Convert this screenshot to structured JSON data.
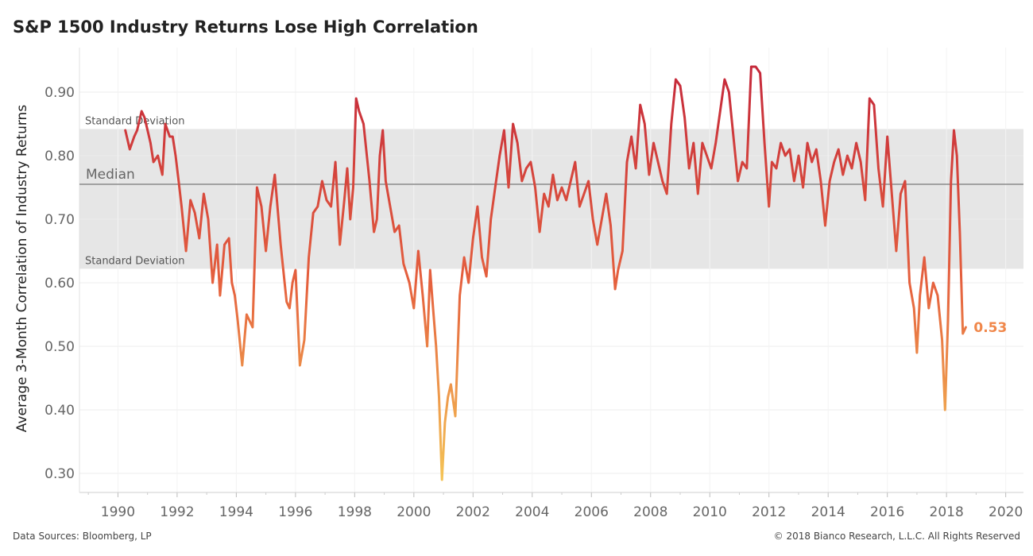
{
  "chart_data": {
    "type": "line",
    "title": "S&P 1500 Industry Returns Lose High Correlation",
    "ylabel": "Average 3-Month Correlation of Industry Returns",
    "xlabel": "",
    "xlim": [
      1988.7,
      2020.6
    ],
    "ylim": [
      0.27,
      0.97
    ],
    "x_ticks": [
      1990,
      1992,
      1994,
      1996,
      1998,
      2000,
      2002,
      2004,
      2006,
      2008,
      2010,
      2012,
      2014,
      2016,
      2018,
      2020
    ],
    "y_ticks": [
      0.3,
      0.4,
      0.5,
      0.6,
      0.7,
      0.8,
      0.9
    ],
    "y_tick_labels": [
      "0.30",
      "0.40",
      "0.50",
      "0.60",
      "0.70",
      "0.80",
      "0.90"
    ],
    "grid": true,
    "reference_lines": {
      "median": {
        "label": "Median",
        "value": 0.755
      },
      "upper_std": {
        "label": "Standard Deviation",
        "value": 0.842
      },
      "lower_std": {
        "label": "Standard Deviation",
        "value": 0.622
      }
    },
    "colors": {
      "high": "#c2233a",
      "mid": "#e5613e",
      "low": "#f4c255",
      "band": "#e6e6e6",
      "median_line": "#8a8a8a"
    },
    "last_value_label": "0.53",
    "series": [
      {
        "x": [
          1990.25,
          1990.4,
          1990.55,
          1990.65,
          1990.8,
          1990.9,
          1991.0,
          1991.1,
          1991.2,
          1991.35,
          1991.5,
          1991.6,
          1991.75,
          1991.85,
          1991.95,
          1992.05,
          1992.15,
          1992.3,
          1992.45,
          1992.6,
          1992.75,
          1992.9,
          1993.05,
          1993.2,
          1993.35,
          1993.45,
          1993.6,
          1993.75,
          1993.85,
          1993.95,
          1994.05,
          1994.2,
          1994.35,
          1994.55,
          1994.7,
          1994.85,
          1995.0,
          1995.15,
          1995.3,
          1995.5,
          1995.7,
          1995.8,
          1995.9,
          1996.0,
          1996.15,
          1996.3,
          1996.45,
          1996.6,
          1996.75,
          1996.9,
          1997.05,
          1997.2,
          1997.35,
          1997.5,
          1997.65,
          1997.75,
          1997.85,
          1997.95,
          1998.05,
          1998.15,
          1998.3,
          1998.5,
          1998.65,
          1998.75,
          1998.85,
          1998.95,
          1999.05,
          1999.2,
          1999.35,
          1999.5,
          1999.65,
          1999.85,
          2000.0,
          2000.15,
          2000.3,
          2000.45,
          2000.55,
          2000.65,
          2000.75,
          2000.85,
          2000.95,
          2001.05,
          2001.15,
          2001.25,
          2001.4,
          2001.55,
          2001.7,
          2001.85,
          2002.0,
          2002.15,
          2002.3,
          2002.45,
          2002.6,
          2002.75,
          2002.9,
          2003.05,
          2003.2,
          2003.35,
          2003.5,
          2003.65,
          2003.8,
          2003.95,
          2004.1,
          2004.25,
          2004.4,
          2004.55,
          2004.7,
          2004.85,
          2005.0,
          2005.15,
          2005.3,
          2005.45,
          2005.6,
          2005.75,
          2005.9,
          2006.05,
          2006.2,
          2006.35,
          2006.5,
          2006.65,
          2006.8,
          2006.9,
          2007.05,
          2007.2,
          2007.35,
          2007.5,
          2007.65,
          2007.8,
          2007.95,
          2008.1,
          2008.25,
          2008.4,
          2008.55,
          2008.7,
          2008.85,
          2009.0,
          2009.15,
          2009.3,
          2009.45,
          2009.6,
          2009.75,
          2009.9,
          2010.05,
          2010.2,
          2010.35,
          2010.5,
          2010.65,
          2010.8,
          2010.95,
          2011.1,
          2011.25,
          2011.4,
          2011.55,
          2011.7,
          2011.85,
          2012.0,
          2012.1,
          2012.25,
          2012.4,
          2012.55,
          2012.7,
          2012.85,
          2013.0,
          2013.15,
          2013.3,
          2013.45,
          2013.6,
          2013.75,
          2013.9,
          2014.05,
          2014.2,
          2014.35,
          2014.5,
          2014.65,
          2014.8,
          2014.95,
          2015.1,
          2015.25,
          2015.4,
          2015.55,
          2015.7,
          2015.85,
          2016.0,
          2016.15,
          2016.3,
          2016.45,
          2016.6,
          2016.75,
          2016.9,
          2017.0,
          2017.1,
          2017.25,
          2017.4,
          2017.55,
          2017.7,
          2017.85,
          2017.95,
          2018.05,
          2018.15,
          2018.25,
          2018.35,
          2018.45,
          2018.55,
          2018.65
        ],
        "y": [
          0.84,
          0.81,
          0.83,
          0.84,
          0.87,
          0.86,
          0.84,
          0.82,
          0.79,
          0.8,
          0.77,
          0.85,
          0.83,
          0.83,
          0.8,
          0.76,
          0.72,
          0.65,
          0.73,
          0.71,
          0.67,
          0.74,
          0.7,
          0.6,
          0.66,
          0.58,
          0.66,
          0.67,
          0.6,
          0.58,
          0.54,
          0.47,
          0.55,
          0.53,
          0.75,
          0.72,
          0.65,
          0.72,
          0.77,
          0.66,
          0.57,
          0.56,
          0.6,
          0.62,
          0.47,
          0.51,
          0.64,
          0.71,
          0.72,
          0.76,
          0.73,
          0.72,
          0.79,
          0.66,
          0.73,
          0.78,
          0.7,
          0.75,
          0.89,
          0.87,
          0.85,
          0.76,
          0.68,
          0.7,
          0.8,
          0.84,
          0.76,
          0.72,
          0.68,
          0.69,
          0.63,
          0.6,
          0.56,
          0.65,
          0.58,
          0.5,
          0.62,
          0.56,
          0.5,
          0.42,
          0.29,
          0.38,
          0.42,
          0.44,
          0.39,
          0.58,
          0.64,
          0.6,
          0.67,
          0.72,
          0.64,
          0.61,
          0.7,
          0.75,
          0.8,
          0.84,
          0.75,
          0.85,
          0.82,
          0.76,
          0.78,
          0.79,
          0.75,
          0.68,
          0.74,
          0.72,
          0.77,
          0.73,
          0.75,
          0.73,
          0.76,
          0.79,
          0.72,
          0.74,
          0.76,
          0.7,
          0.66,
          0.7,
          0.74,
          0.69,
          0.59,
          0.62,
          0.65,
          0.79,
          0.83,
          0.78,
          0.88,
          0.85,
          0.77,
          0.82,
          0.79,
          0.76,
          0.74,
          0.85,
          0.92,
          0.91,
          0.86,
          0.78,
          0.82,
          0.74,
          0.82,
          0.8,
          0.78,
          0.82,
          0.87,
          0.92,
          0.9,
          0.83,
          0.76,
          0.79,
          0.78,
          0.94,
          0.94,
          0.93,
          0.82,
          0.72,
          0.79,
          0.78,
          0.82,
          0.8,
          0.81,
          0.76,
          0.8,
          0.75,
          0.82,
          0.79,
          0.81,
          0.76,
          0.69,
          0.76,
          0.79,
          0.81,
          0.77,
          0.8,
          0.78,
          0.82,
          0.79,
          0.73,
          0.89,
          0.88,
          0.78,
          0.72,
          0.83,
          0.74,
          0.65,
          0.74,
          0.76,
          0.6,
          0.56,
          0.49,
          0.58,
          0.64,
          0.56,
          0.6,
          0.58,
          0.51,
          0.4,
          0.54,
          0.76,
          0.84,
          0.8,
          0.68,
          0.52,
          0.53
        ]
      }
    ]
  },
  "footer": {
    "left": "Data Sources: Bloomberg, LP",
    "right": "© 2018 Bianco Research, L.L.C. All Rights Reserved"
  }
}
